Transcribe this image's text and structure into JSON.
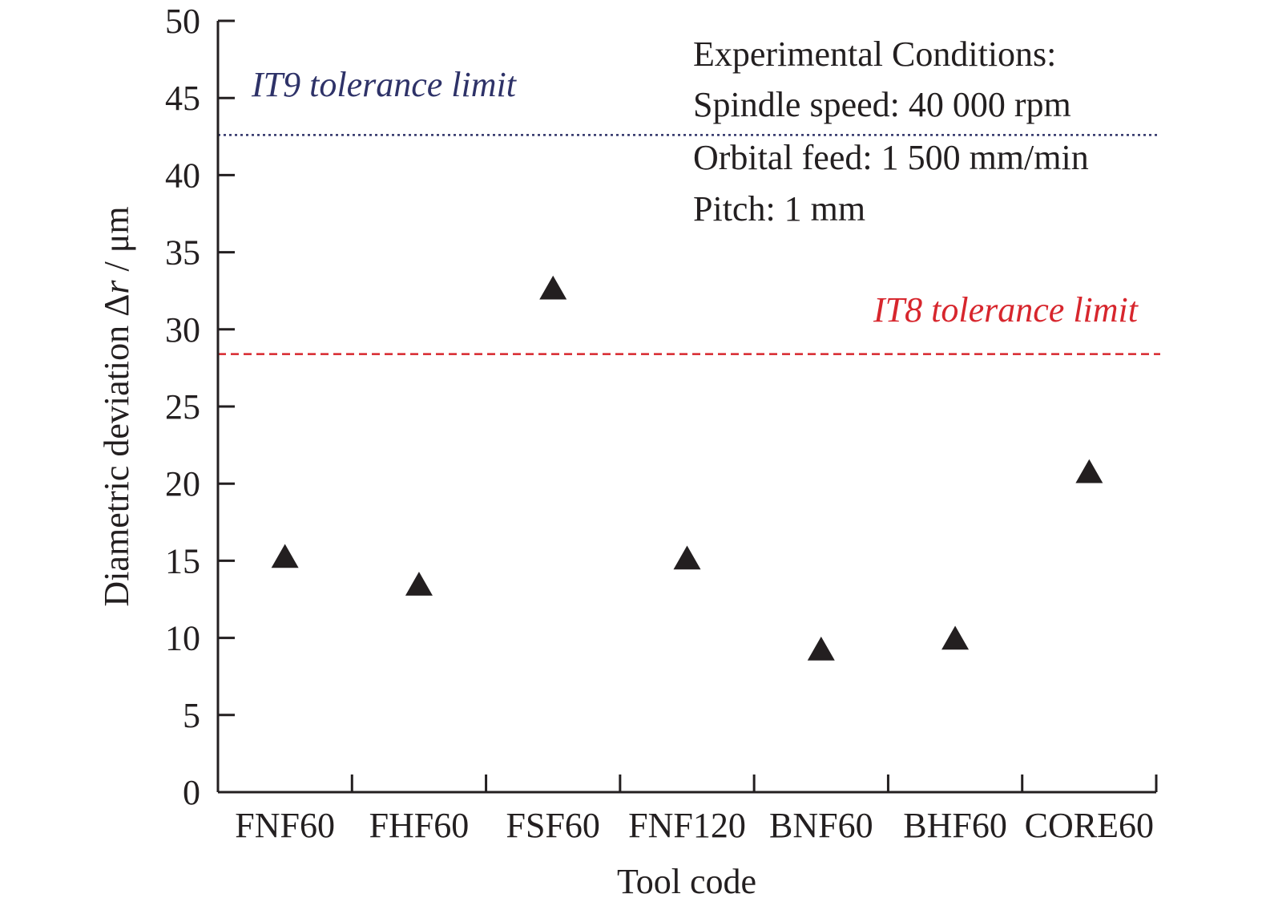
{
  "chart_data": {
    "type": "scatter",
    "categories": [
      "FNF60",
      "FHF60",
      "FSF60",
      "FNF120",
      "BNF60",
      "BHF60",
      "CORE60"
    ],
    "values": [
      15.2,
      13.4,
      32.6,
      15.1,
      9.2,
      9.9,
      20.7
    ],
    "marker": "filled-triangle",
    "marker_color": "#231f20",
    "xlabel": "Tool code",
    "ylabel_prefix": "Diametric deviation Δ",
    "ylabel_var": "r",
    "ylabel_suffix": " / μm",
    "ylim": [
      0,
      50
    ],
    "yticks": [
      0,
      5,
      10,
      15,
      20,
      25,
      30,
      35,
      40,
      45,
      50
    ],
    "grid": false,
    "reference_lines": [
      {
        "label": "IT9 tolerance limit",
        "value": 42.6,
        "color": "#2e3268",
        "style": "dotted"
      },
      {
        "label": "IT8 tolerance limit",
        "value": 28.4,
        "color": "#d7262d",
        "style": "dashed"
      }
    ],
    "annotation_lines": [
      "Experimental Conditions:",
      "Spindle speed: 40 000 rpm",
      "Orbital feed: 1 500 mm/min",
      "Pitch: 1 mm"
    ]
  }
}
